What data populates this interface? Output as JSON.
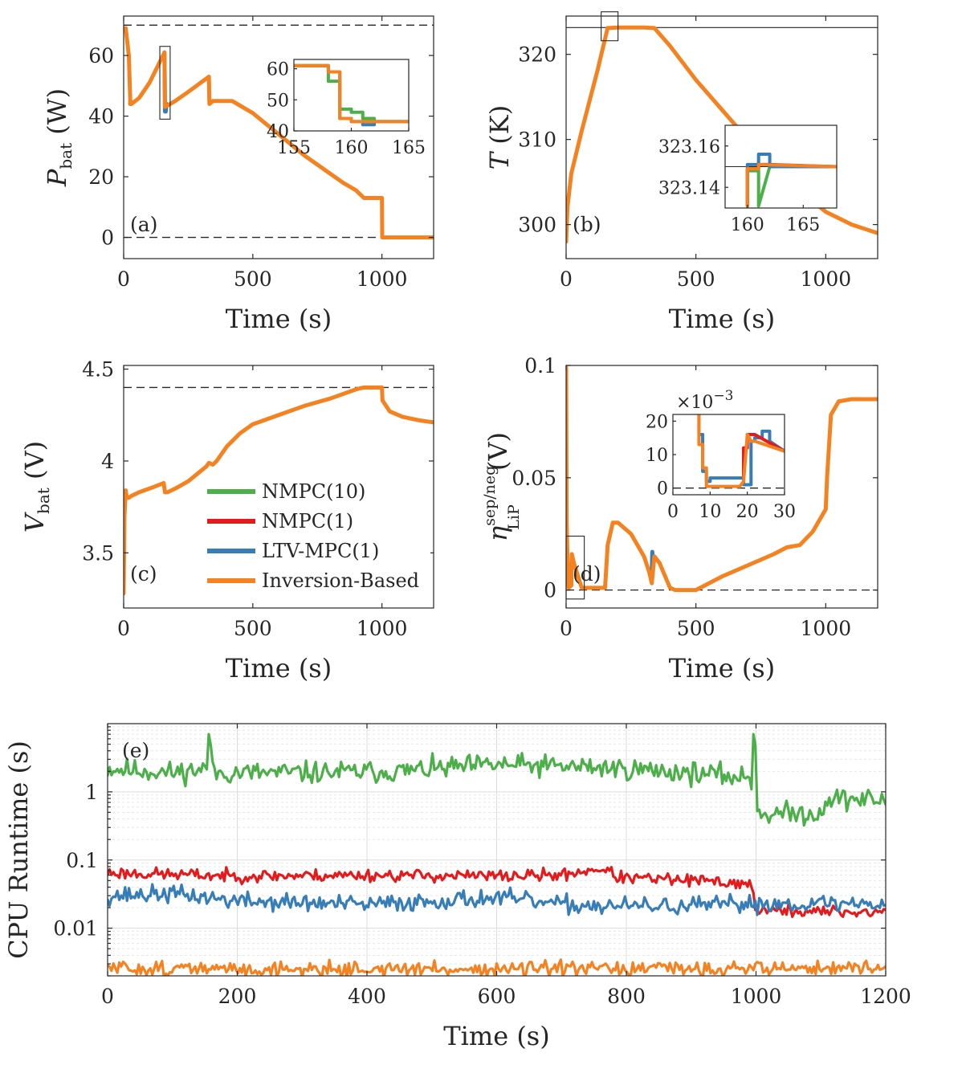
{
  "colors": {
    "nmpc10": "#4daf4a",
    "nmpc1": "#e41a1c",
    "ltv": "#377eb8",
    "inv": "#f58220"
  },
  "legend": {
    "entries": [
      "NMPC(10)",
      "NMPC(1)",
      "LTV-MPC(1)",
      "Inversion-Based"
    ]
  },
  "chart_data": [
    {
      "id": "a",
      "panel_label": "(a)",
      "type": "line",
      "ylabel": "P",
      "ylabel_sub": "bat",
      "ylabel_unit": " (W)",
      "xlabel": "Time (s)",
      "xlim": [
        0,
        1200
      ],
      "ylim": [
        -7,
        73
      ],
      "xticks": [
        0,
        500,
        1000
      ],
      "xtick_labels": [
        "0",
        "500",
        "1000"
      ],
      "yticks": [
        0,
        20,
        40,
        60
      ],
      "ytick_labels": [
        "0",
        "20",
        "40",
        "60"
      ],
      "ref_lines": [
        70,
        0
      ],
      "zoom_box": {
        "x": [
          140,
          180
        ],
        "y": [
          39,
          63
        ]
      },
      "series": [
        {
          "name": "Inversion-Based",
          "x": [
            0,
            8,
            20,
            26,
            30,
            60,
            100,
            158,
            160,
            200,
            250,
            330,
            332,
            345,
            400,
            420,
            500,
            600,
            700,
            800,
            850,
            900,
            930,
            1000,
            1001,
            1200
          ],
          "y": [
            69,
            69,
            60,
            44,
            44,
            46,
            51,
            61,
            43,
            45,
            48,
            53,
            44,
            45,
            45,
            45,
            41,
            34,
            27,
            21,
            18,
            15.5,
            13,
            13,
            0,
            0
          ]
        },
        {
          "name": "LTV-MPC(1)",
          "x": [
            158,
            160,
            163,
            166
          ],
          "y": [
            61,
            41.5,
            41.5,
            44
          ]
        },
        {
          "name": "NMPC(10)",
          "x": [
            25,
            26
          ],
          "y": [
            44,
            45
          ]
        }
      ],
      "inset": {
        "xlim": [
          155,
          165
        ],
        "ylim": [
          40,
          63
        ],
        "xticks": [
          155,
          160,
          165
        ],
        "xtick_labels": [
          "155",
          "160",
          "165"
        ],
        "yticks": [
          40,
          50,
          60
        ],
        "ytick_labels": [
          "40",
          "50",
          "60"
        ],
        "series": [
          {
            "name": "NMPC(10)",
            "x": [
              155,
              158,
              158,
              159,
              159,
              160,
              160,
              161,
              161,
              162,
              162,
              165
            ],
            "y": [
              61,
              61,
              56,
              56,
              47,
              47,
              46,
              46,
              44,
              44,
              43,
              43
            ]
          },
          {
            "name": "LTV-MPC(1)",
            "x": [
              155,
              158,
              158,
              159,
              159,
              160,
              160,
              161,
              161,
              162,
              162,
              165
            ],
            "y": [
              61,
              61,
              59,
              59,
              44,
              44,
              43,
              43,
              42,
              42,
              43,
              43
            ]
          },
          {
            "name": "Inversion-Based",
            "x": [
              155,
              158,
              158,
              159,
              159,
              160,
              160,
              165
            ],
            "y": [
              61,
              61,
              59,
              59,
              44,
              44,
              43,
              43
            ]
          }
        ]
      }
    },
    {
      "id": "b",
      "panel_label": "(b)",
      "type": "line",
      "ylabel": "T",
      "ylabel_sub": "",
      "ylabel_unit": " (K)",
      "xlabel": "Time (s)",
      "xlim": [
        0,
        1200
      ],
      "ylim": [
        296,
        324.5
      ],
      "xticks": [
        0,
        500,
        1000
      ],
      "xtick_labels": [
        "0",
        "500",
        "1000"
      ],
      "yticks": [
        300,
        310,
        320
      ],
      "ytick_labels": [
        "300",
        "310",
        "320"
      ],
      "ref_lines_solid": [
        323.15
      ],
      "zoom_box": {
        "x": [
          135,
          200
        ],
        "y": [
          321.6,
          325
        ]
      },
      "series": [
        {
          "name": "Inversion-Based",
          "x": [
            0,
            5,
            20,
            60,
            120,
            160,
            200,
            250,
            300,
            340,
            400,
            500,
            600,
            700,
            800,
            900,
            1000,
            1100,
            1200
          ],
          "y": [
            298,
            302,
            306,
            311,
            318,
            323.1,
            323.15,
            323.15,
            323.15,
            323.1,
            321,
            317,
            313.5,
            310,
            306.5,
            304,
            301.5,
            300,
            299
          ]
        }
      ],
      "inset": {
        "xlim": [
          158,
          168
        ],
        "ylim": [
          323.13,
          323.17
        ],
        "xticks": [
          160,
          165
        ],
        "xtick_labels": [
          "160",
          "165"
        ],
        "yticks": [
          323.14,
          323.16
        ],
        "ytick_labels": [
          "323.14",
          "323.16"
        ],
        "series": [
          {
            "name": "NMPC(10)",
            "x": [
              160,
              160,
              161,
              161,
              162,
              168
            ],
            "y": [
              323.131,
              323.148,
              323.148,
              323.131,
              323.15,
              323.15
            ]
          },
          {
            "name": "LTV-MPC(1)",
            "x": [
              160,
              160,
              161,
              161,
              162,
              162,
              163,
              163,
              168
            ],
            "y": [
              323.131,
              323.151,
              323.151,
              323.156,
              323.156,
              323.15,
              323.15,
              323.15,
              323.15
            ]
          },
          {
            "name": "NMPC(1)",
            "x": [
              160,
              160,
              161,
              161,
              162,
              168
            ],
            "y": [
              323.131,
              323.149,
              323.149,
              323.151,
              323.151,
              323.15
            ]
          },
          {
            "name": "Inversion-Based",
            "x": [
              160,
              160,
              161,
              161,
              168
            ],
            "y": [
              323.131,
              323.149,
              323.149,
              323.151,
              323.15
            ]
          }
        ]
      }
    },
    {
      "id": "c",
      "panel_label": "(c)",
      "type": "line",
      "ylabel": "V",
      "ylabel_sub": "bat",
      "ylabel_unit": " (V)",
      "xlabel": "Time (s)",
      "xlim": [
        0,
        1200
      ],
      "ylim": [
        3.2,
        4.52
      ],
      "xticks": [
        0,
        500,
        1000
      ],
      "xtick_labels": [
        "0",
        "500",
        "1000"
      ],
      "yticks": [
        3.5,
        4,
        4.5
      ],
      "ytick_labels": [
        "3.5",
        "4",
        "4.5"
      ],
      "ref_lines": [
        4.4
      ],
      "series": [
        {
          "name": "Inversion-Based",
          "x": [
            0,
            3,
            8,
            12,
            20,
            30,
            60,
            100,
            155,
            160,
            170,
            200,
            250,
            320,
            330,
            345,
            360,
            400,
            450,
            500,
            600,
            700,
            800,
            900,
            930,
            1000,
            1002,
            1030,
            1080,
            1150,
            1200
          ],
          "y": [
            3.28,
            3.7,
            3.84,
            3.8,
            3.8,
            3.81,
            3.83,
            3.85,
            3.88,
            3.83,
            3.83,
            3.85,
            3.89,
            3.97,
            3.99,
            3.98,
            4.0,
            4.08,
            4.15,
            4.2,
            4.25,
            4.3,
            4.34,
            4.39,
            4.4,
            4.4,
            4.33,
            4.27,
            4.24,
            4.22,
            4.21
          ]
        }
      ]
    },
    {
      "id": "d",
      "panel_label": "(d)",
      "type": "line",
      "ylabel": "η",
      "ylabel_sub": "LiP",
      "ylabel_sup": "sep/neg",
      "ylabel_unit": " (V)",
      "xlabel": "Time (s)",
      "xlim": [
        0,
        1200
      ],
      "ylim": [
        -0.008,
        0.1
      ],
      "xticks": [
        0,
        500,
        1000
      ],
      "xtick_labels": [
        "0",
        "500",
        "1000"
      ],
      "yticks": [
        0,
        0.05,
        0.1
      ],
      "ytick_labels": [
        "0",
        "0.05",
        "0.1"
      ],
      "ref_lines": [
        0
      ],
      "zoom_box": {
        "x": [
          0,
          70
        ],
        "y": [
          -0.004,
          0.024
        ]
      },
      "series": [
        {
          "name": "Inversion-Based",
          "x": [
            0,
            2,
            5,
            8,
            10,
            20,
            22,
            30,
            60,
            150,
            160,
            180,
            200,
            250,
            300,
            320,
            330,
            340,
            360,
            400,
            420,
            500,
            600,
            700,
            800,
            850,
            900,
            950,
            970,
            1000,
            1005,
            1020,
            1050,
            1100,
            1200
          ],
          "y": [
            0.099,
            0.03,
            0.015,
            0.005,
            0.001,
            0.002,
            0.016,
            0.012,
            0.001,
            0.001,
            0.02,
            0.03,
            0.03,
            0.025,
            0.015,
            0.008,
            0.003,
            0.015,
            0.012,
            0.001,
            0.0,
            0.0,
            0.006,
            0.011,
            0.016,
            0.019,
            0.02,
            0.026,
            0.03,
            0.036,
            0.05,
            0.078,
            0.084,
            0.085,
            0.085
          ]
        },
        {
          "name": "LTV-MPC(1)",
          "x": [
            330,
            332,
            336
          ],
          "y": [
            0.008,
            0.017,
            0.012
          ]
        }
      ],
      "inset": {
        "xlim": [
          0,
          30
        ],
        "ylim": [
          -2,
          22
        ],
        "xticks": [
          0,
          10,
          20,
          30
        ],
        "xtick_labels": [
          "0",
          "10",
          "20",
          "30"
        ],
        "yticks": [
          0,
          10,
          20
        ],
        "ytick_labels": [
          "0",
          "10",
          "20"
        ],
        "exponent_label": "×10",
        "exponent_power": "−3",
        "series": [
          {
            "name": "LTV-MPC(1)",
            "x": [
              7,
              7,
              8,
              8,
              9,
              9,
              10,
              10,
              19,
              19,
              21,
              21,
              22,
              22,
              24,
              24,
              26,
              26,
              30
            ],
            "y": [
              22,
              16,
              16,
              5,
              5,
              2,
              2,
              3,
              3,
              1,
              1,
              14,
              14,
              15,
              15,
              17,
              17,
              14,
              11
            ]
          },
          {
            "name": "NMPC(1)",
            "x": [
              19,
              19,
              20,
              20,
              22,
              30
            ],
            "y": [
              2,
              12,
              12,
              16,
              16,
              11
            ]
          },
          {
            "name": "Inversion-Based",
            "x": [
              7,
              7,
              8,
              8,
              9,
              9,
              10,
              10,
              18,
              19,
              19,
              20,
              20,
              21,
              21,
              22,
              30
            ],
            "y": [
              22,
              13,
              13,
              6,
              6,
              0.5,
              0.5,
              0.5,
              0.5,
              2,
              2,
              16,
              16,
              14,
              14,
              14,
              11
            ]
          }
        ]
      }
    },
    {
      "id": "e",
      "panel_label": "(e)",
      "type": "line",
      "scale_y": "log",
      "ylabel": "CPU Runtime (s)",
      "xlabel": "Time (s)",
      "xlim": [
        0,
        1200
      ],
      "ylim": [
        0.002,
        10
      ],
      "xticks": [
        0,
        200,
        400,
        600,
        800,
        1000,
        1200
      ],
      "xtick_labels": [
        "0",
        "200",
        "400",
        "600",
        "800",
        "1000",
        "1200"
      ],
      "yticks": [
        0.01,
        0.1,
        1
      ],
      "ytick_labels": [
        "0.01",
        "0.1",
        "1"
      ],
      "grid": true,
      "series": [
        {
          "name": "NMPC(10)",
          "noise": 0.08,
          "seed": 11,
          "spikes": [
            [
              155,
              7
            ],
            [
              995,
              7
            ]
          ],
          "x": [
            0,
            100,
            155,
            160,
            300,
            450,
            600,
            750,
            900,
            990,
            1000,
            1005,
            1100,
            1110,
            1200
          ],
          "y": [
            2.2,
            1.9,
            2.2,
            1.9,
            1.9,
            2.0,
            2.5,
            2.3,
            1.9,
            1.6,
            0.6,
            0.48,
            0.48,
            0.8,
            0.75
          ]
        },
        {
          "name": "NMPC(1)",
          "noise": 0.045,
          "seed": 23,
          "x": [
            0,
            200,
            400,
            600,
            700,
            760,
            790,
            900,
            990,
            1000,
            1005,
            1200
          ],
          "y": [
            0.065,
            0.058,
            0.06,
            0.058,
            0.06,
            0.075,
            0.055,
            0.05,
            0.045,
            0.02,
            0.018,
            0.017
          ]
        },
        {
          "name": "LTV-MPC(1)",
          "noise": 0.065,
          "seed": 37,
          "x": [
            0,
            100,
            200,
            400,
            600,
            700,
            800,
            900,
            1000,
            1200
          ],
          "y": [
            0.03,
            0.032,
            0.025,
            0.022,
            0.028,
            0.022,
            0.021,
            0.021,
            0.023,
            0.023
          ]
        },
        {
          "name": "Inversion-Based",
          "noise": 0.055,
          "seed": 51,
          "x": [
            0,
            200,
            400,
            600,
            800,
            1000,
            1200
          ],
          "y": [
            0.0026,
            0.0025,
            0.0025,
            0.0025,
            0.0025,
            0.0026,
            0.0026
          ]
        }
      ]
    }
  ]
}
